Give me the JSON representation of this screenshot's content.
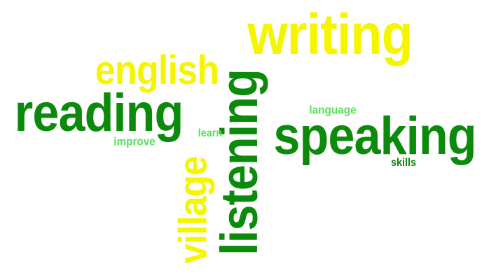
{
  "words": {
    "writing": {
      "text": "writing",
      "color": "#f5f500"
    },
    "english": {
      "text": "english",
      "color": "#f5f500"
    },
    "reading": {
      "text": "reading",
      "color": "#0c8a0c"
    },
    "listening": {
      "text": "listening",
      "color": "#0c8a0c"
    },
    "speaking": {
      "text": "speaking",
      "color": "#0c8a0c"
    },
    "language": {
      "text": "language",
      "color": "#5ae05a"
    },
    "learn": {
      "text": "learn",
      "color": "#5ae05a"
    },
    "improve": {
      "text": "improve",
      "color": "#5ae05a"
    },
    "skills": {
      "text": "skills",
      "color": "#0c8a0c"
    },
    "village": {
      "text": "village",
      "color": "#f5f500"
    }
  }
}
